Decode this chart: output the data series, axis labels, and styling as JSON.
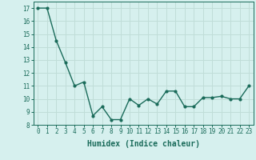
{
  "x": [
    0,
    1,
    2,
    3,
    4,
    5,
    6,
    7,
    8,
    9,
    10,
    11,
    12,
    13,
    14,
    15,
    16,
    17,
    18,
    19,
    20,
    21,
    22,
    23
  ],
  "y": [
    17.0,
    17.0,
    14.5,
    12.8,
    11.0,
    11.3,
    8.7,
    9.4,
    8.4,
    8.4,
    10.0,
    9.5,
    10.0,
    9.6,
    10.6,
    10.6,
    9.4,
    9.4,
    10.1,
    10.1,
    10.2,
    10.0,
    10.0,
    11.0
  ],
  "line_color": "#1a6b5a",
  "marker": "o",
  "marker_size": 2,
  "line_width": 1.0,
  "xlabel": "Humidex (Indice chaleur)",
  "xlim": [
    -0.5,
    23.5
  ],
  "ylim": [
    8,
    17.5
  ],
  "yticks": [
    8,
    9,
    10,
    11,
    12,
    13,
    14,
    15,
    16,
    17
  ],
  "xticks": [
    0,
    1,
    2,
    3,
    4,
    5,
    6,
    7,
    8,
    9,
    10,
    11,
    12,
    13,
    14,
    15,
    16,
    17,
    18,
    19,
    20,
    21,
    22,
    23
  ],
  "bg_color": "#d6f0ee",
  "grid_color": "#c0ddd8",
  "tick_label_fontsize": 5.5,
  "xlabel_fontsize": 7
}
